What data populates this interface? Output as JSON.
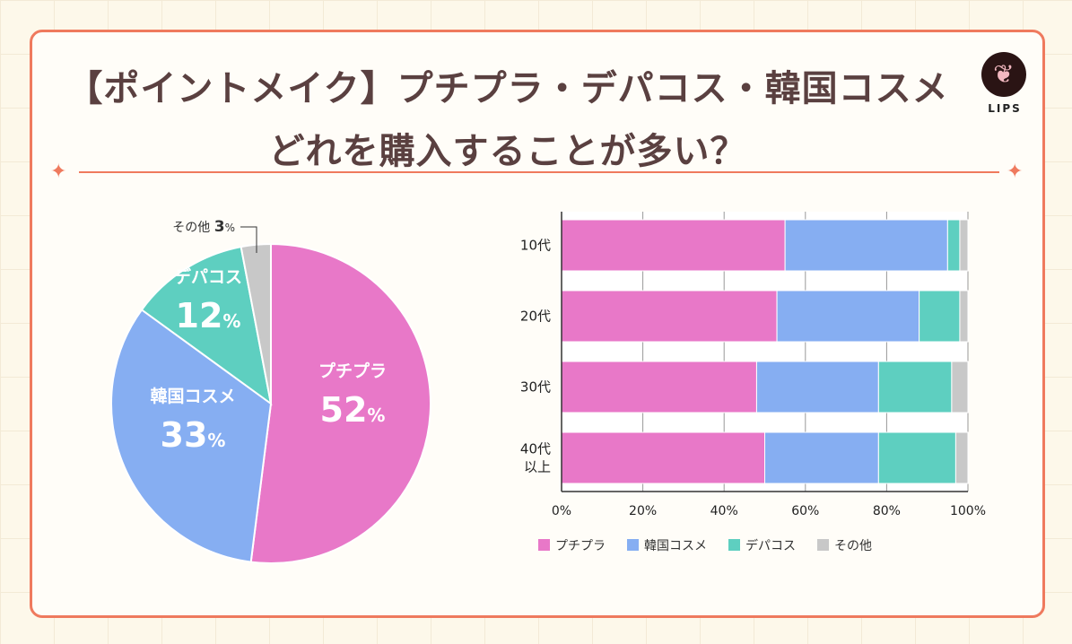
{
  "title_line1": "【ポイントメイク】プチプラ・デパコス・韓国コスメ",
  "title_line2": "どれを購入することが多い？",
  "logo_text": "LIPS",
  "colors": {
    "プチプラ": "#e878c8",
    "韓国コスメ": "#86aef2",
    "デパコス": "#5ecfc0",
    "その他": "#c8c8c8",
    "accent": "#ef7a5e"
  },
  "chart_data": [
    {
      "type": "pie",
      "labels": [
        "プチプラ",
        "韓国コスメ",
        "デパコス",
        "その他"
      ],
      "values": [
        52,
        33,
        12,
        3
      ],
      "unit": "%"
    },
    {
      "type": "bar",
      "orientation": "horizontal",
      "stacked": true,
      "categories": [
        "10代",
        "20代",
        "30代",
        "40代\n以上"
      ],
      "series": [
        {
          "name": "プチプラ",
          "values": [
            55,
            53,
            48,
            50
          ]
        },
        {
          "name": "韓国コスメ",
          "values": [
            40,
            35,
            30,
            28
          ]
        },
        {
          "name": "デパコス",
          "values": [
            3,
            10,
            18,
            19
          ]
        },
        {
          "name": "その他",
          "values": [
            2,
            2,
            4,
            3
          ]
        }
      ],
      "xlim": [
        0,
        100
      ],
      "xticks": [
        "0%",
        "20%",
        "40%",
        "60%",
        "80%",
        "100%"
      ],
      "grid": true,
      "legend": "bottom"
    }
  ]
}
